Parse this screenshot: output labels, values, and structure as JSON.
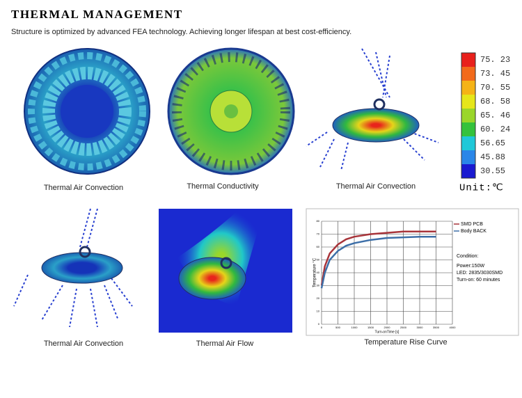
{
  "header": {
    "title": "THERMAL MANAGEMENT",
    "subtitle": "Structure is optimized by advanced FEA  technology. Achieving longer lifespan at best cost-efficiency."
  },
  "scale": {
    "labels": [
      "75. 23",
      "73. 45",
      "70. 55",
      "68. 58",
      "65. 46",
      "60. 24",
      "56.65",
      "45.88",
      "30.55"
    ],
    "colors": [
      "#e8201c",
      "#f26a1b",
      "#f5b316",
      "#e6e61a",
      "#9ad62a",
      "#34c23c",
      "#1fc8d8",
      "#2a86e8",
      "#1a1ad0"
    ],
    "unit": "Unit:℃"
  },
  "panels": [
    "Thermal Air Convection",
    "Thermal Conductivity",
    "Thermal Air Convection",
    "Thermal Air Convection",
    "Thermal Air Flow",
    "Temperature Rise Curve"
  ],
  "chart_data": {
    "type": "line",
    "x_label": "Turn-onTime [s]",
    "y_label": "Temperature °C",
    "x": [
      0,
      100,
      250,
      500,
      750,
      1000,
      1500,
      2000,
      2500,
      3000,
      3500
    ],
    "series": [
      {
        "name": "SMD PCB",
        "color": "#a8343a",
        "values": [
          30,
          45,
          55,
          62,
          66,
          68,
          70,
          71,
          72,
          72,
          72
        ]
      },
      {
        "name": "Body BACK",
        "color": "#3d6fa8",
        "values": [
          28,
          40,
          50,
          57,
          61,
          63,
          65.5,
          67,
          67.5,
          68,
          68
        ]
      }
    ],
    "xlim": [
      0,
      4000
    ],
    "xticks": [
      0,
      500,
      1000,
      1500,
      2000,
      2500,
      3000,
      3500,
      4000
    ],
    "ylim": [
      0,
      80
    ],
    "yticks": [
      0,
      10,
      20,
      30,
      40,
      50,
      60,
      70,
      80
    ],
    "grid": true,
    "notes": [
      "Condition:",
      "Power:150W",
      "LED: 2835/3030SMD",
      "Turn-on: 60 minutes"
    ]
  }
}
